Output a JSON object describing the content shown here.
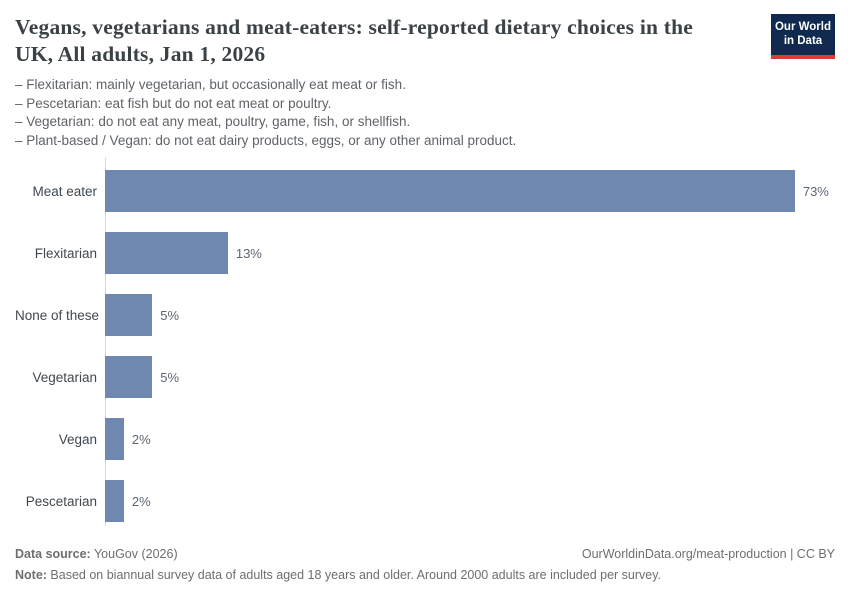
{
  "header": {
    "title": "Vegans, vegetarians and meat-eaters: self-reported dietary choices in the UK, All adults, Jan 1, 2026",
    "logo": {
      "line1": "Our World",
      "line2": "in Data"
    }
  },
  "subtitle_lines": [
    "– Flexitarian: mainly vegetarian, but occasionally eat meat or fish.",
    "– Pescetarian: eat fish but do not eat meat or poultry.",
    "– Vegetarian: do not eat any meat, poultry, game, fish, or shellfish.",
    "– Plant-based / Vegan: do not eat dairy products, eggs, or any other animal product."
  ],
  "chart_data": {
    "type": "bar",
    "orientation": "horizontal",
    "title": "Vegans, vegetarians and meat-eaters: self-reported dietary choices in the UK, All adults, Jan 1, 2026",
    "categories": [
      "Meat eater",
      "Flexitarian",
      "None of these",
      "Vegetarian",
      "Vegan",
      "Pescetarian"
    ],
    "values": [
      73,
      13,
      5,
      5,
      2,
      2
    ],
    "value_labels": [
      "73%",
      "13%",
      "5%",
      "5%",
      "2%",
      "2%"
    ],
    "unit": "%",
    "xlim": [
      0,
      77
    ],
    "grid": false,
    "legend": "none",
    "bar_color": "#6e88af"
  },
  "footer": {
    "source_label": "Data source:",
    "source_value": " YouGov (2026)",
    "attribution": "OurWorldinData.org/meat-production | CC BY",
    "note_label": "Note:",
    "note_value": " Based on biannual survey data of adults aged 18 years and older. Around 2000 adults are included per survey."
  },
  "colors": {
    "bar": "#6e88af",
    "logo_navy": "#0f2a4e",
    "logo_red": "#d63e32",
    "title_text": "#3a4246",
    "subtitle_text": "#5f6368",
    "axis_line": "#d8d8d8",
    "category_label": "#40484f",
    "value_label": "#5c6670",
    "footer_text": "#6e6e6e"
  }
}
